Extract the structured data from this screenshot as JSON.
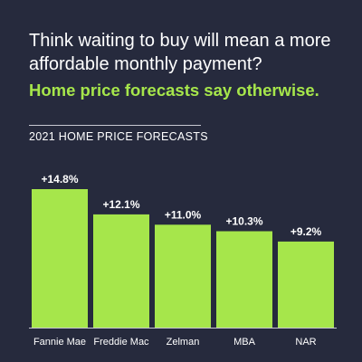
{
  "headline": "Think waiting to buy will mean a more affordable monthly payment?",
  "subheadline": "Home price forecasts say otherwise.",
  "colors": {
    "background": "#262a3d",
    "bar": "#a6e64b",
    "subheadline": "#a6e64b",
    "text": "#ffffff"
  },
  "chart_data": {
    "type": "bar",
    "title": "2021 HOME PRICE FORECASTS",
    "xlabel": "",
    "ylabel": "",
    "categories": [
      "Fannie Mae",
      "Freddie Mac",
      "Zelman",
      "MBA",
      "NAR"
    ],
    "values": [
      14.8,
      12.1,
      11.0,
      10.3,
      9.2
    ],
    "data_labels": [
      "+14.8%",
      "+12.1%",
      "+11.0%",
      "+10.3%",
      "+9.2%"
    ],
    "ylim": [
      0,
      14.8
    ],
    "grid": false,
    "legend": "none"
  }
}
